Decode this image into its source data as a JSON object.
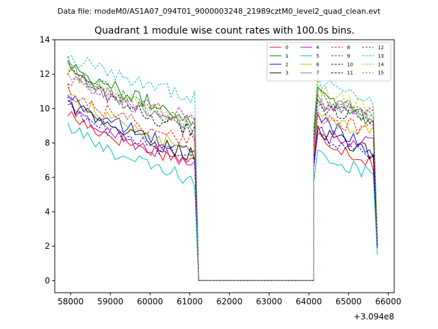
{
  "chart_data": {
    "type": "line",
    "suptitle": "Data file: modeM0/AS1A07_094T01_9000003248_21989cztM0_level2_quad_clean.evt",
    "title": "Quadrant 1 module wise count rates with 100.0s bins.",
    "xlabel": "",
    "ylabel": "",
    "x_offset_label": "+3.094e8",
    "xlim": [
      57600,
      66150
    ],
    "ylim": [
      -0.7,
      14
    ],
    "xticks": [
      58000,
      59000,
      60000,
      61000,
      62000,
      63000,
      64000,
      65000,
      66000
    ],
    "xtick_labels": [
      "58000",
      "59000",
      "60000",
      "61000",
      "62000",
      "63000",
      "64000",
      "65000",
      "66000"
    ],
    "yticks": [
      0,
      2,
      4,
      6,
      8,
      10,
      12,
      14
    ],
    "ytick_labels": [
      "0",
      "2",
      "4",
      "6",
      "8",
      "10",
      "12",
      "14"
    ],
    "grid": false,
    "legend_position": "top-right",
    "segment1": {
      "x_start": 57925,
      "step": 100,
      "count": 33
    },
    "gap": {
      "x_start": 61225,
      "x_end": 64125,
      "value": 0
    },
    "segment2": {
      "x_start": 64125,
      "step": 100,
      "count": 16
    },
    "series": [
      {
        "name": "0",
        "color": "#ff0000",
        "dash": "solid",
        "seg1_start": 9.8,
        "seg1_end": 6.9,
        "seg2_peak": 8.5,
        "seg2_end": 6.8,
        "final": 2.0
      },
      {
        "name": "1",
        "color": "#008000",
        "dash": "solid",
        "seg1_start": 12.9,
        "seg1_end": 9.4,
        "seg2_peak": 11.2,
        "seg2_end": 9.2,
        "final": 2.4
      },
      {
        "name": "2",
        "color": "#0000ff",
        "dash": "solid",
        "seg1_start": 10.9,
        "seg1_end": 7.4,
        "seg2_peak": 9.6,
        "seg2_end": 7.6,
        "final": 2.0
      },
      {
        "name": "3",
        "color": "#000000",
        "dash": "solid",
        "seg1_start": 10.5,
        "seg1_end": 7.3,
        "seg2_peak": 8.9,
        "seg2_end": 7.3,
        "final": 2.0
      },
      {
        "name": "4",
        "color": "#bf00bf",
        "dash": "solid",
        "seg1_start": 10.2,
        "seg1_end": 6.8,
        "seg2_peak": 8.6,
        "seg2_end": 7.9,
        "final": 2.0
      },
      {
        "name": "5",
        "color": "#00bfbf",
        "dash": "solid",
        "seg1_start": 9.1,
        "seg1_end": 5.8,
        "seg2_peak": 7.4,
        "seg2_end": 6.2,
        "final": 1.5
      },
      {
        "name": "6",
        "color": "#bfbf00",
        "dash": "solid",
        "seg1_start": 11.1,
        "seg1_end": 7.5,
        "seg2_peak": 9.6,
        "seg2_end": 8.6,
        "final": 2.2
      },
      {
        "name": "7",
        "color": "#808080",
        "dash": "solid",
        "seg1_start": 12.6,
        "seg1_end": 8.7,
        "seg2_peak": 10.6,
        "seg2_end": 9.4,
        "final": 2.4
      },
      {
        "name": "8",
        "color": "#ff0000",
        "dash": "dashed",
        "seg1_start": 11.2,
        "seg1_end": 8.1,
        "seg2_peak": 9.5,
        "seg2_end": 8.7,
        "final": 2.1
      },
      {
        "name": "9",
        "color": "#008000",
        "dash": "dashed",
        "seg1_start": 12.7,
        "seg1_end": 9.0,
        "seg2_peak": 10.8,
        "seg2_end": 9.6,
        "final": 2.4
      },
      {
        "name": "10",
        "color": "#0000ff",
        "dash": "dashed",
        "seg1_start": 10.3,
        "seg1_end": 7.0,
        "seg2_peak": 8.4,
        "seg2_end": 7.1,
        "final": 1.9
      },
      {
        "name": "11",
        "color": "#000000",
        "dash": "dashed",
        "seg1_start": 12.4,
        "seg1_end": 8.6,
        "seg2_peak": 10.2,
        "seg2_end": 9.4,
        "final": 2.3
      },
      {
        "name": "12",
        "color": "#bf00bf",
        "dash": "dashed",
        "seg1_start": 11.8,
        "seg1_end": 9.5,
        "seg2_peak": 10.2,
        "seg2_end": 9.6,
        "final": 2.3
      },
      {
        "name": "13",
        "color": "#00bfbf",
        "dash": "dashed",
        "seg1_start": 13.3,
        "seg1_end": 10.7,
        "seg2_peak": 11.6,
        "seg2_end": 10.4,
        "final": 2.6
      },
      {
        "name": "14",
        "color": "#bfbf00",
        "dash": "dashed",
        "seg1_start": 12.5,
        "seg1_end": 9.2,
        "seg2_peak": 11.3,
        "seg2_end": 9.9,
        "final": 2.4
      },
      {
        "name": "15",
        "color": "#808080",
        "dash": "dashed",
        "seg1_start": 12.3,
        "seg1_end": 9.1,
        "seg2_peak": 10.4,
        "seg2_end": 9.8,
        "final": 2.4
      }
    ]
  }
}
